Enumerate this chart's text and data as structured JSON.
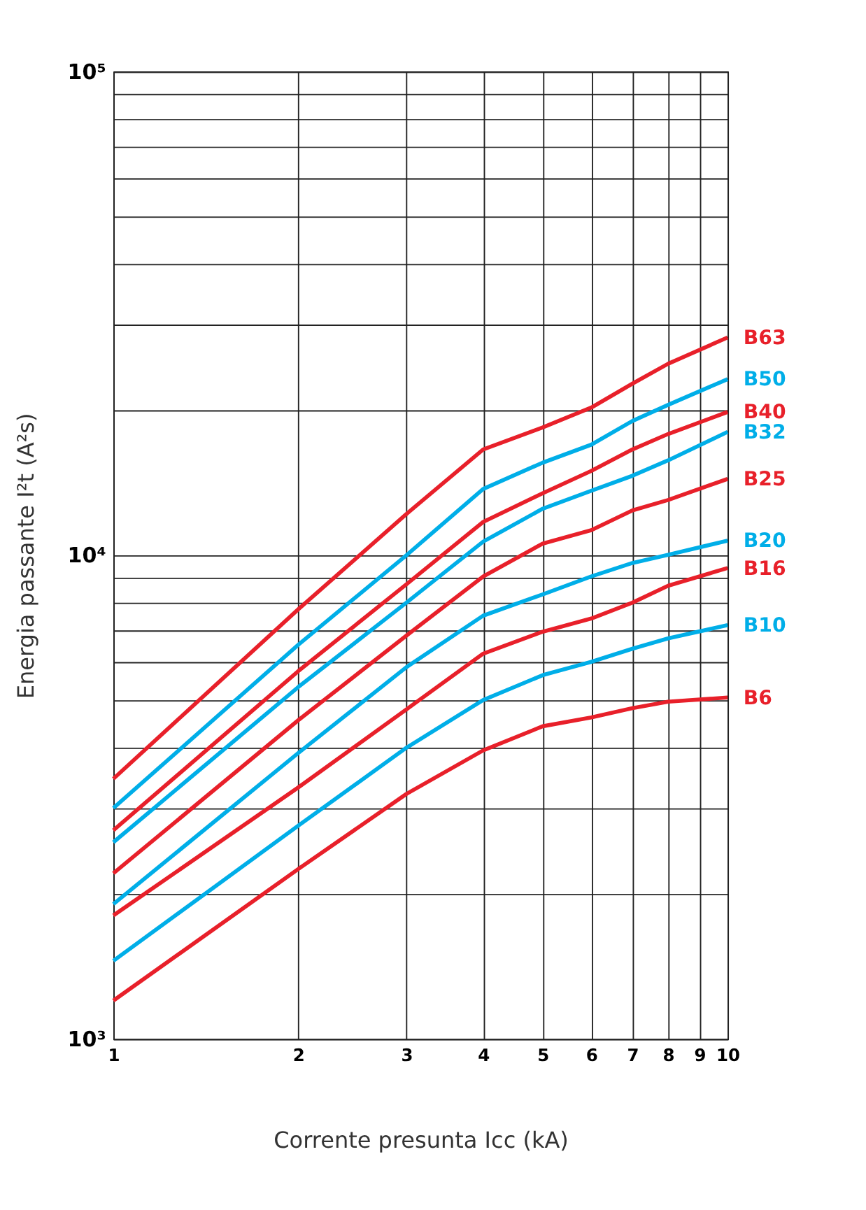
{
  "chart_data": {
    "type": "line",
    "xlabel": "Corrente presunta Icc (kA)",
    "ylabel": "Energia passante I²t (A²s)",
    "log": "xy",
    "grid": true,
    "legend": false,
    "marker": "none",
    "line_style": "solid",
    "xlim": [
      1,
      10
    ],
    "ylim": [
      1000,
      100000
    ],
    "xticks": [
      1,
      2,
      3,
      4,
      5,
      6,
      7,
      8,
      9,
      10
    ],
    "yticks": [
      {
        "value": 1000,
        "label": "10³"
      },
      {
        "value": 2000,
        "label": null
      },
      {
        "value": 3000,
        "label": null
      },
      {
        "value": 4000,
        "label": null
      },
      {
        "value": 5000,
        "label": null
      },
      {
        "value": 6000,
        "label": null
      },
      {
        "value": 7000,
        "label": null
      },
      {
        "value": 8000,
        "label": null
      },
      {
        "value": 9000,
        "label": null
      },
      {
        "value": 10000,
        "label": "10⁴"
      },
      {
        "value": 20000,
        "label": null
      },
      {
        "value": 30000,
        "label": null
      },
      {
        "value": 40000,
        "label": null
      },
      {
        "value": 50000,
        "label": null
      },
      {
        "value": 60000,
        "label": null
      },
      {
        "value": 70000,
        "label": null
      },
      {
        "value": 80000,
        "label": null
      },
      {
        "value": 90000,
        "label": null
      },
      {
        "value": 100000,
        "label": "10⁵"
      }
    ],
    "x": [
      1,
      2,
      3,
      4,
      5,
      6,
      7,
      8,
      10
    ],
    "series": [
      {
        "name": "B63",
        "color": "#e8202a",
        "values": [
          3450,
          7730,
          12170,
          16550,
          18380,
          20200,
          22640,
          24880,
          28200
        ]
      },
      {
        "name": "B50",
        "color": "#00aee8",
        "values": [
          3000,
          6530,
          10000,
          13710,
          15540,
          16930,
          18950,
          20460,
          23130
        ]
      },
      {
        "name": "B40",
        "color": "#e8202a",
        "values": [
          2700,
          5760,
          8710,
          11720,
          13430,
          14940,
          16550,
          17810,
          19780
        ]
      },
      {
        "name": "B32",
        "color": "#00aee8",
        "values": [
          2550,
          5340,
          7980,
          10670,
          12480,
          13600,
          14600,
          15710,
          17990
        ]
      },
      {
        "name": "B25",
        "color": "#e8202a",
        "values": [
          2200,
          4560,
          6820,
          9040,
          10570,
          11270,
          12380,
          13010,
          14380
        ]
      },
      {
        "name": "B20",
        "color": "#00aee8",
        "values": [
          1900,
          3900,
          5870,
          7500,
          8300,
          9040,
          9640,
          10020,
          10720
        ]
      },
      {
        "name": "B16",
        "color": "#e8202a",
        "values": [
          1800,
          3310,
          4800,
          6260,
          6950,
          7400,
          7980,
          8650,
          9410
        ]
      },
      {
        "name": "B10",
        "color": "#00aee8",
        "values": [
          1450,
          2760,
          4000,
          5020,
          5650,
          6020,
          6410,
          6730,
          7170
        ]
      },
      {
        "name": "B6",
        "color": "#e8202a",
        "values": [
          1200,
          2245,
          3210,
          3950,
          4430,
          4620,
          4830,
          4980,
          5080
        ]
      }
    ]
  }
}
